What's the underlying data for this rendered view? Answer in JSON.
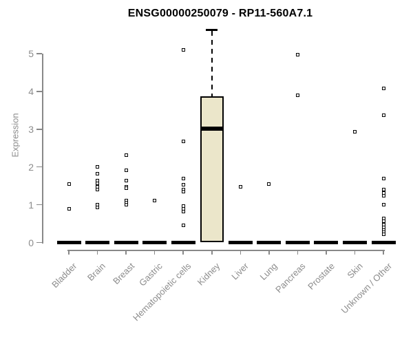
{
  "title": "ENSG00000250079 - RP11-560A7.1",
  "chart_data": {
    "type": "boxplot",
    "title": "ENSG00000250079 - RP11-560A7.1",
    "xlabel": "",
    "ylabel": "Expression",
    "ylim": [
      0,
      5.8
    ],
    "yticks": [
      0,
      1,
      2,
      3,
      4,
      5
    ],
    "grid": false,
    "legend": "none",
    "categories": [
      "Bladder",
      "Brain",
      "Breast",
      "Gastric",
      "Hematopoietic cells",
      "Kidney",
      "Liver",
      "Lung",
      "Pancreas",
      "Prostate",
      "Skin",
      "Unknown / Other"
    ],
    "boxes": [
      {
        "category": "Bladder",
        "q1": 0,
        "median": 0,
        "q3": 0,
        "whisker_low": 0,
        "whisker_high": 0,
        "outliers": [
          1.55,
          0.89
        ]
      },
      {
        "category": "Brain",
        "q1": 0,
        "median": 0,
        "q3": 0,
        "whisker_low": 0,
        "whisker_high": 0,
        "outliers": [
          2.0,
          1.82,
          1.64,
          1.56,
          1.48,
          1.4,
          1.0,
          0.92
        ]
      },
      {
        "category": "Breast",
        "q1": 0,
        "median": 0,
        "q3": 0,
        "whisker_low": 0,
        "whisker_high": 0,
        "outliers": [
          2.32,
          1.91,
          1.64,
          1.47,
          1.44,
          1.12,
          1.06,
          1.0
        ]
      },
      {
        "category": "Gastric",
        "q1": 0,
        "median": 0,
        "q3": 0,
        "whisker_low": 0,
        "whisker_high": 0,
        "outliers": [
          1.11
        ]
      },
      {
        "category": "Hematopoietic cells",
        "q1": 0,
        "median": 0,
        "q3": 0,
        "whisker_low": 0,
        "whisker_high": 0,
        "outliers": [
          5.1,
          2.68,
          1.7,
          1.53,
          1.4,
          1.35,
          0.97,
          0.89,
          0.82,
          0.45
        ]
      },
      {
        "category": "Kidney",
        "q1": 0,
        "median": 3.02,
        "q3": 3.87,
        "whisker_low": 0,
        "whisker_high": 5.63,
        "outliers": []
      },
      {
        "category": "Liver",
        "q1": 0,
        "median": 0,
        "q3": 0,
        "whisker_low": 0,
        "whisker_high": 0,
        "outliers": [
          1.48
        ]
      },
      {
        "category": "Lung",
        "q1": 0,
        "median": 0,
        "q3": 0,
        "whisker_low": 0,
        "whisker_high": 0,
        "outliers": [
          1.55
        ]
      },
      {
        "category": "Pancreas",
        "q1": 0,
        "median": 0,
        "q3": 0,
        "whisker_low": 0,
        "whisker_high": 0,
        "outliers": [
          4.98,
          3.89
        ]
      },
      {
        "category": "Prostate",
        "q1": 0,
        "median": 0,
        "q3": 0,
        "whisker_low": 0,
        "whisker_high": 0,
        "outliers": []
      },
      {
        "category": "Skin",
        "q1": 0,
        "median": 0,
        "q3": 0,
        "whisker_low": 0,
        "whisker_high": 0,
        "outliers": [
          2.94
        ]
      },
      {
        "category": "Unknown / Other",
        "q1": 0,
        "median": 0,
        "q3": 0,
        "whisker_low": 0,
        "whisker_high": 0,
        "outliers": [
          4.08,
          3.37,
          1.7,
          1.4,
          1.31,
          1.24,
          1.0,
          0.64,
          0.57,
          0.47,
          0.4,
          0.33,
          0.27,
          0.21
        ]
      }
    ],
    "colors": {
      "box_fill": "#ebe6ca",
      "box_border": "#000000",
      "median": "#000000",
      "axis": "#888888",
      "tick_label": "#8c8c8c",
      "title": "#000000",
      "background": "#ffffff"
    }
  }
}
